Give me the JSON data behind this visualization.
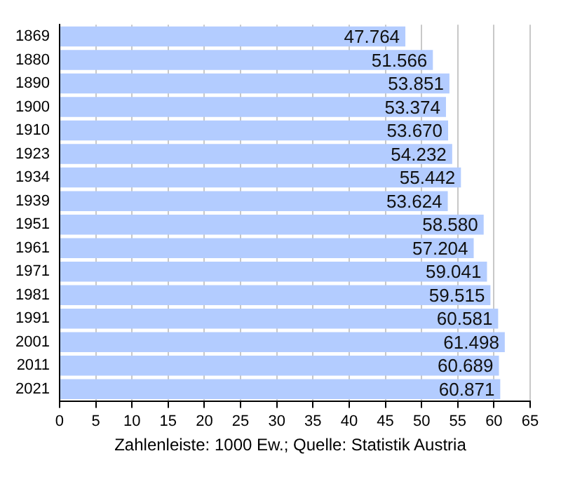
{
  "chart_data": {
    "type": "bar",
    "orientation": "horizontal",
    "categories": [
      "1869",
      "1880",
      "1890",
      "1900",
      "1910",
      "1923",
      "1934",
      "1939",
      "1951",
      "1961",
      "1971",
      "1981",
      "1991",
      "2001",
      "2011",
      "2021"
    ],
    "values": [
      47.764,
      51.566,
      53.851,
      53.374,
      53.67,
      54.232,
      55.442,
      53.624,
      58.58,
      57.204,
      59.041,
      59.515,
      60.581,
      61.498,
      60.689,
      60.871
    ],
    "value_labels": [
      "47.764",
      "51.566",
      "53.851",
      "53.374",
      "53.670",
      "54.232",
      "55.442",
      "53.624",
      "58.580",
      "57.204",
      "59.041",
      "59.515",
      "60.581",
      "61.498",
      "60.689",
      "60.871"
    ],
    "color": "#b3ccff",
    "xlim": [
      0,
      65
    ],
    "xticks": [
      0,
      5,
      10,
      15,
      20,
      25,
      30,
      35,
      40,
      45,
      50,
      55,
      60,
      65
    ],
    "grid": "x",
    "annotations": [
      "Zahlenleiste: 1000 Ew.; Quelle: Statistik Austria"
    ]
  }
}
